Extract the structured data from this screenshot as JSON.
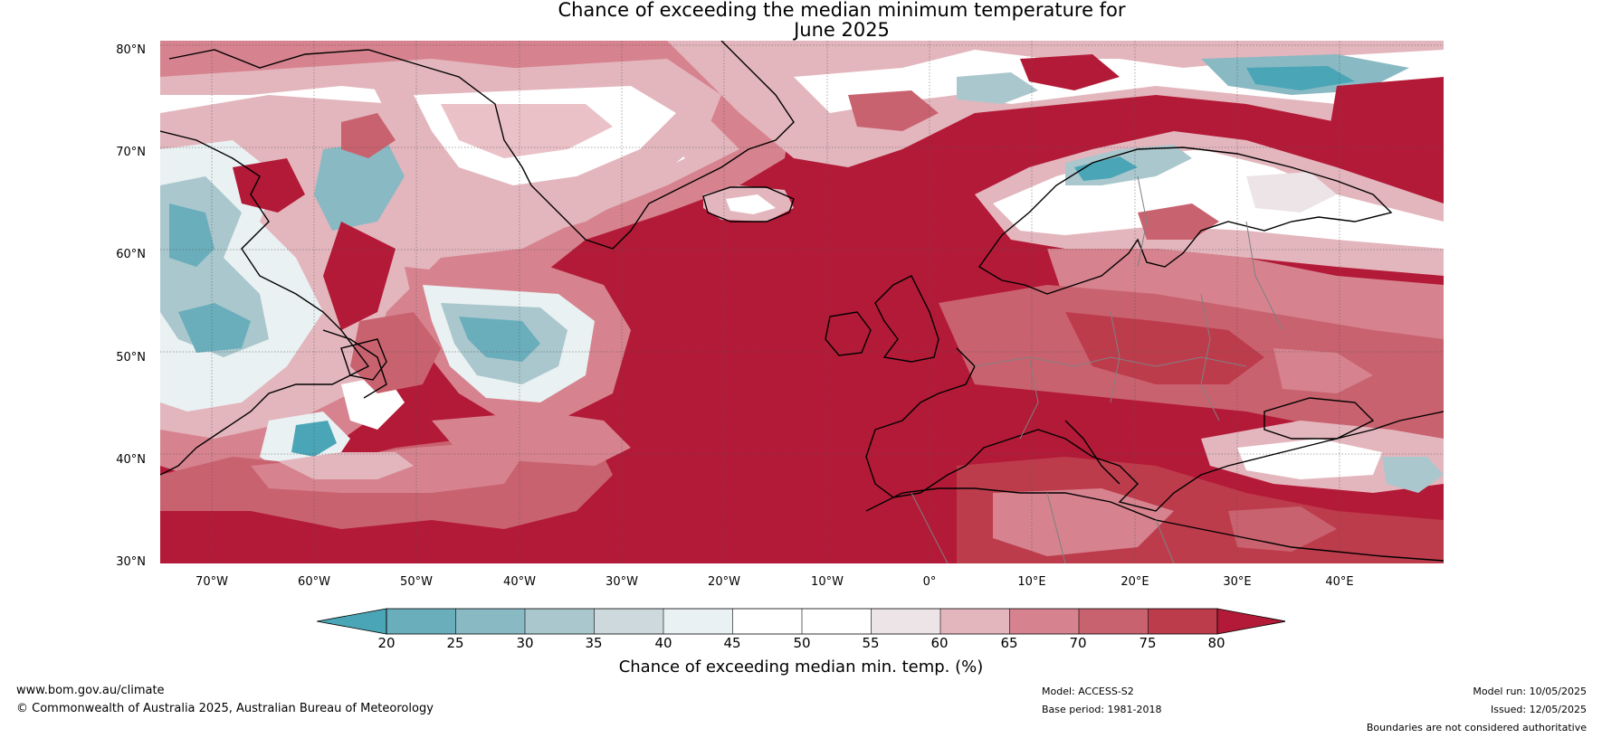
{
  "title": {
    "line1": "Chance of exceeding the median minimum temperature for",
    "line2": "June 2025"
  },
  "map": {
    "lat_labels": [
      "80°N",
      "70°N",
      "60°N",
      "50°N",
      "40°N",
      "30°N"
    ],
    "lon_labels": [
      "70°W",
      "60°W",
      "50°W",
      "40°W",
      "30°W",
      "20°W",
      "10°W",
      "0°",
      "10°E",
      "20°E",
      "30°E",
      "40°E"
    ],
    "lat_range": [
      30,
      81
    ],
    "lon_range": [
      -75,
      50
    ],
    "coastline_color": "#000000",
    "border_color": "#808080"
  },
  "legend": {
    "ticks": [
      "20",
      "25",
      "30",
      "35",
      "40",
      "45",
      "50",
      "55",
      "60",
      "65",
      "70",
      "75",
      "80"
    ],
    "label": "Chance of exceeding median min. temp. (%)",
    "colors": [
      "#4aa5b6",
      "#6aaebc",
      "#89b9c3",
      "#aac7cd",
      "#cdd9dc",
      "#e9f1f2",
      "#ffffff",
      "#ffffff",
      "#ece4e6",
      "#e3b6bd",
      "#d6838f",
      "#c9626f",
      "#bd3c4c",
      "#b31a37"
    ]
  },
  "footer": {
    "website": "www.bom.gov.au/climate",
    "copyright": "© Commonwealth of Australia 2025, Australian Bureau of Meteorology",
    "model": "Model: ACCESS-S2",
    "base_period": "Base period: 1981-2018",
    "model_run": "Model run: 10/05/2025",
    "issued": "Issued: 12/05/2025",
    "disclaimer": "Boundaries are not considered authoritative"
  }
}
